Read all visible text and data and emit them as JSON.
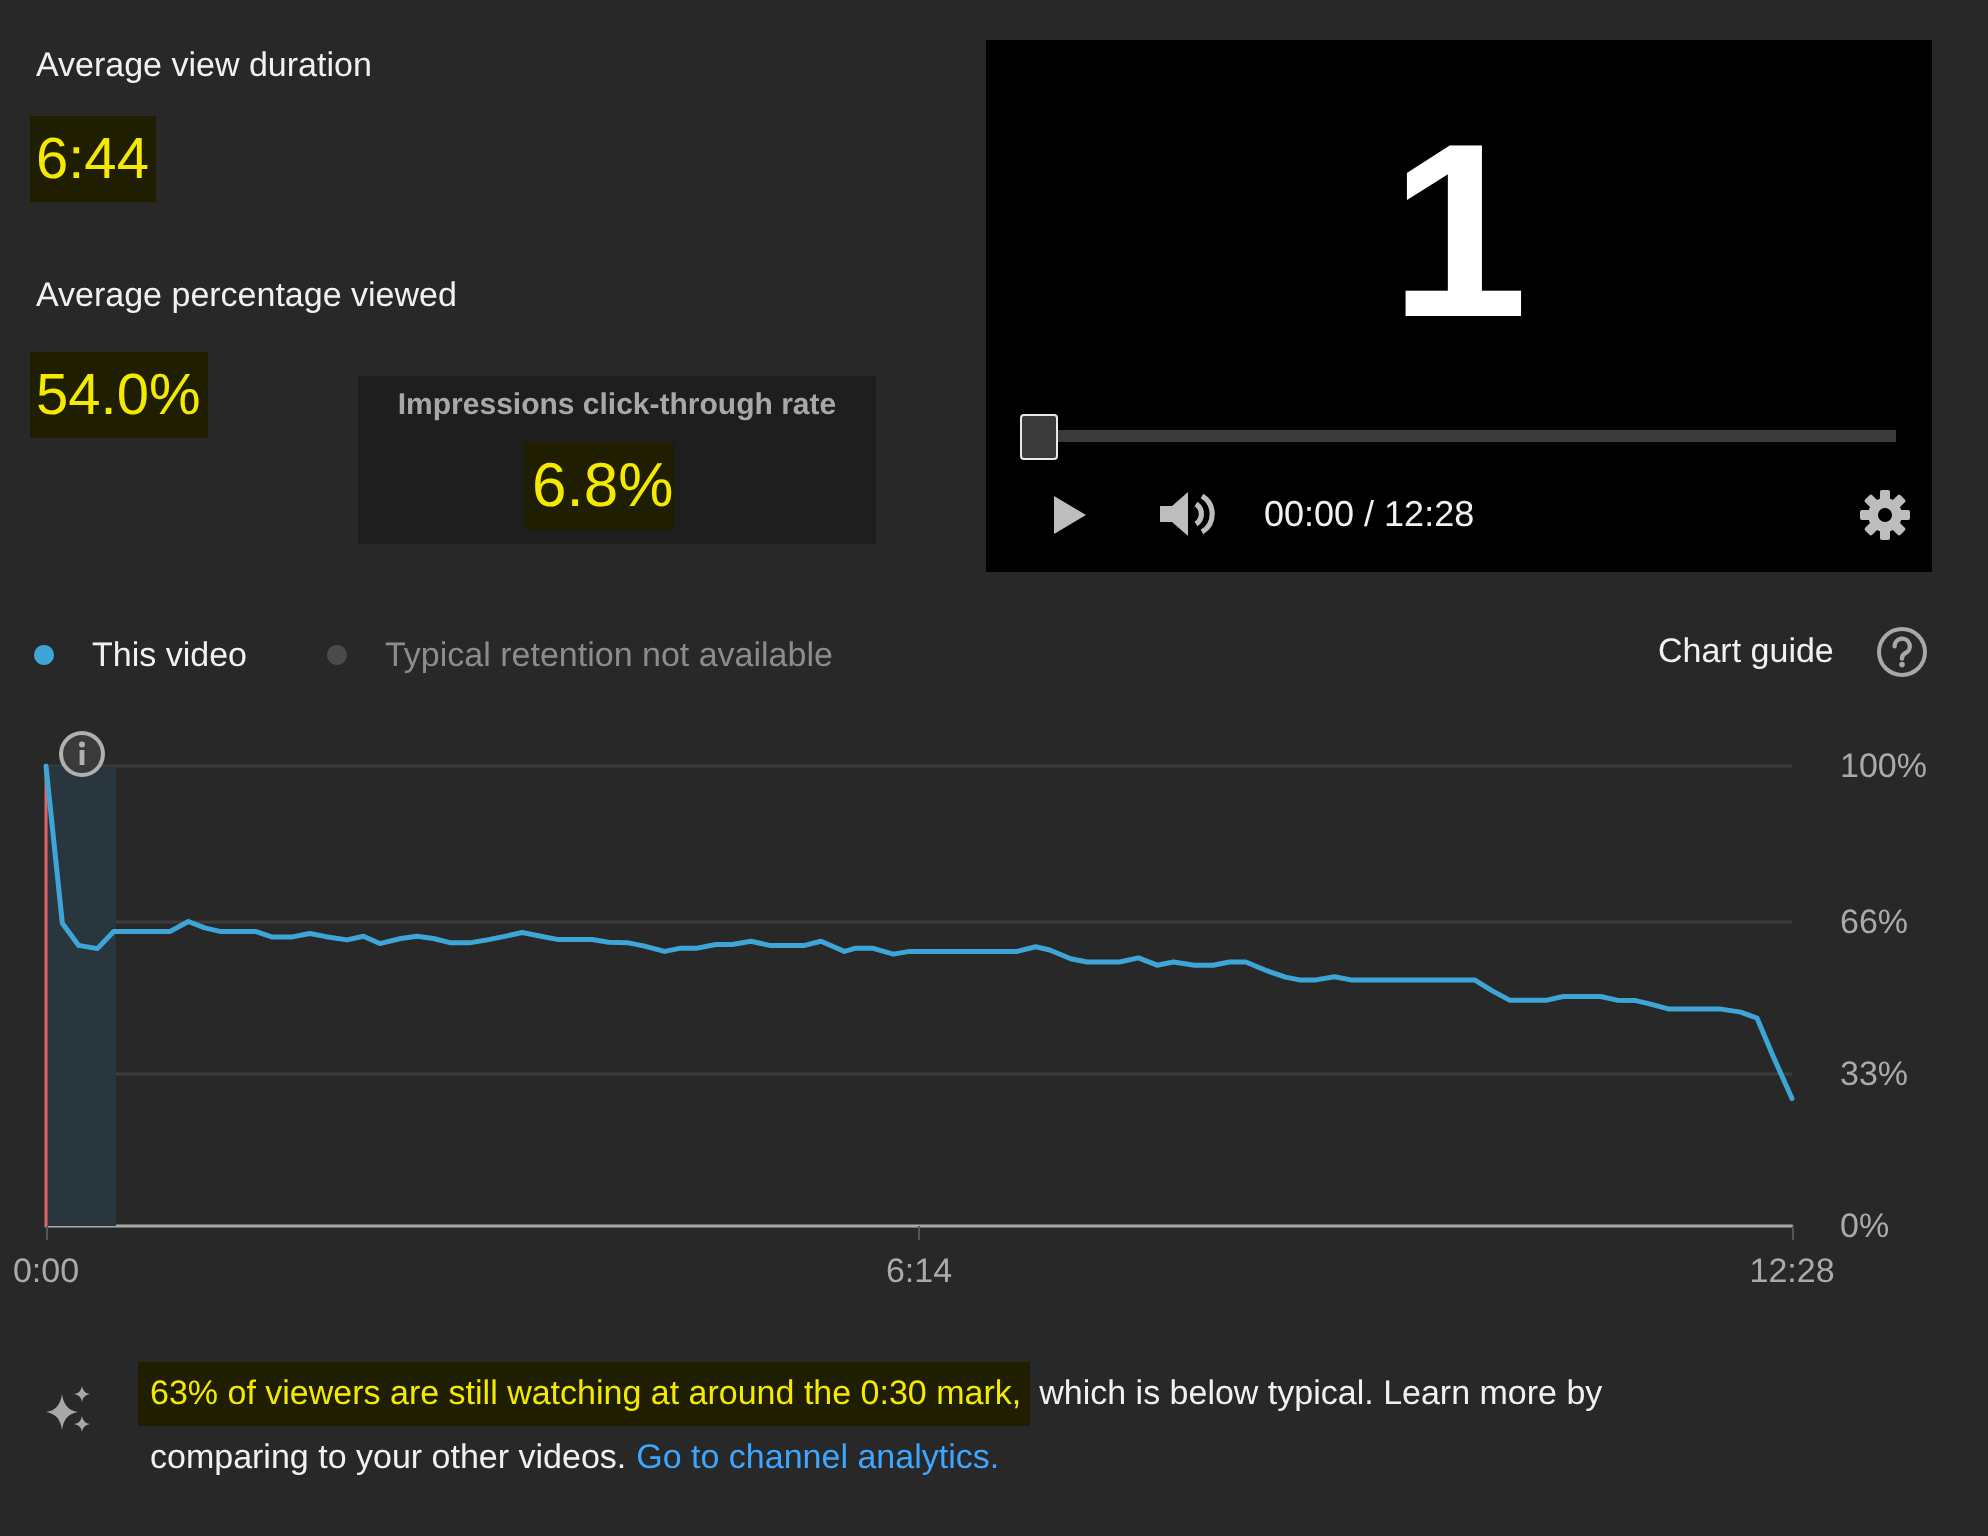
{
  "chart_data": {
    "type": "line",
    "x": [
      0,
      7,
      14,
      22,
      29,
      53,
      61,
      68,
      75,
      90,
      97,
      105,
      113,
      120,
      129,
      136,
      143,
      152,
      159,
      166,
      173,
      182,
      189,
      196,
      204,
      212,
      219,
      234,
      241,
      249,
      256,
      265,
      272,
      279,
      287,
      294,
      302,
      310,
      325,
      332,
      342,
      347,
      354,
      363,
      370,
      416,
      424,
      430,
      439,
      446,
      460,
      468,
      476,
      483,
      492,
      500,
      507,
      514,
      523,
      531,
      537,
      544,
      552,
      559,
      612,
      620,
      627,
      643,
      650,
      666,
      673,
      681,
      687,
      695,
      717,
      726,
      733,
      740,
      748
    ],
    "series": [
      {
        "name": "This video",
        "color": "#3ea6d6",
        "values": [
          100,
          65.8,
          61.0,
          60.3,
          64.0,
          64.0,
          66.2,
          64.8,
          64.0,
          64.0,
          62.8,
          62.8,
          63.6,
          62.9,
          62.2,
          63.0,
          61.4,
          62.5,
          63.0,
          62.5,
          61.6,
          61.6,
          62.2,
          62.9,
          63.8,
          63.0,
          62.3,
          62.3,
          61.7,
          61.6,
          60.9,
          59.7,
          60.4,
          60.4,
          61.2,
          61.2,
          61.9,
          61.0,
          61.0,
          61.9,
          59.7,
          60.4,
          60.4,
          59.1,
          59.7,
          59.7,
          60.7,
          60.0,
          58.1,
          57.4,
          57.4,
          58.3,
          56.7,
          57.4,
          56.7,
          56.7,
          57.4,
          57.4,
          55.5,
          54.1,
          53.5,
          53.5,
          54.2,
          53.5,
          53.5,
          51.0,
          49.1,
          49.1,
          49.9,
          49.9,
          49.1,
          49.0,
          48.3,
          47.2,
          47.2,
          46.5,
          45.2,
          36.8,
          27.7
        ]
      },
      {
        "name": "Typical retention not available",
        "color": "#4a4a4a",
        "values": [
          null,
          null,
          null,
          null,
          null,
          null,
          null,
          null,
          null,
          null,
          null,
          null,
          null,
          null,
          null,
          null,
          null,
          null,
          null,
          null,
          null,
          null,
          null,
          null,
          null,
          null,
          null,
          null,
          null,
          null,
          null,
          null,
          null,
          null,
          null,
          null,
          null,
          null,
          null,
          null,
          null,
          null,
          null,
          null,
          null,
          null,
          null,
          null,
          null,
          null,
          null,
          null,
          null,
          null,
          null,
          null,
          null,
          null,
          null,
          null,
          null,
          null,
          null,
          null,
          null,
          null,
          null,
          null,
          null,
          null,
          null,
          null,
          null,
          null,
          null,
          null,
          null,
          null,
          null
        ]
      }
    ],
    "xlim": [
      0,
      748
    ],
    "xticks": [
      {
        "value": 0,
        "label": "0:00"
      },
      {
        "value": 374,
        "label": "6:14"
      },
      {
        "value": 748,
        "label": "12:28"
      }
    ],
    "ylim": [
      0,
      100
    ],
    "yticks": [
      {
        "value": 0,
        "label": "0%"
      },
      {
        "value": 33,
        "label": "33%"
      },
      {
        "value": 66,
        "label": "66%"
      },
      {
        "value": 100,
        "label": "100%"
      }
    ],
    "grid": "y",
    "legend": "top left",
    "marker": "none",
    "bands": [
      {
        "axis": "x",
        "from": 0,
        "to": 30,
        "color": "#2a363d"
      }
    ],
    "ref_lines": [
      {
        "axis": "x",
        "value": 0,
        "color": "#e06666"
      }
    ],
    "annotations": [
      "Average view duration",
      "6:44",
      "Average percentage viewed",
      "54.0%",
      "Impressions click-through rate",
      "6.8%",
      "1",
      "00:00 / 12:28",
      "Chart guide",
      "63% of viewers are still watching at around the 0:30 mark,",
      "which is below typical. Learn more by",
      "comparing to your other videos.",
      "Go to channel analytics."
    ]
  }
}
